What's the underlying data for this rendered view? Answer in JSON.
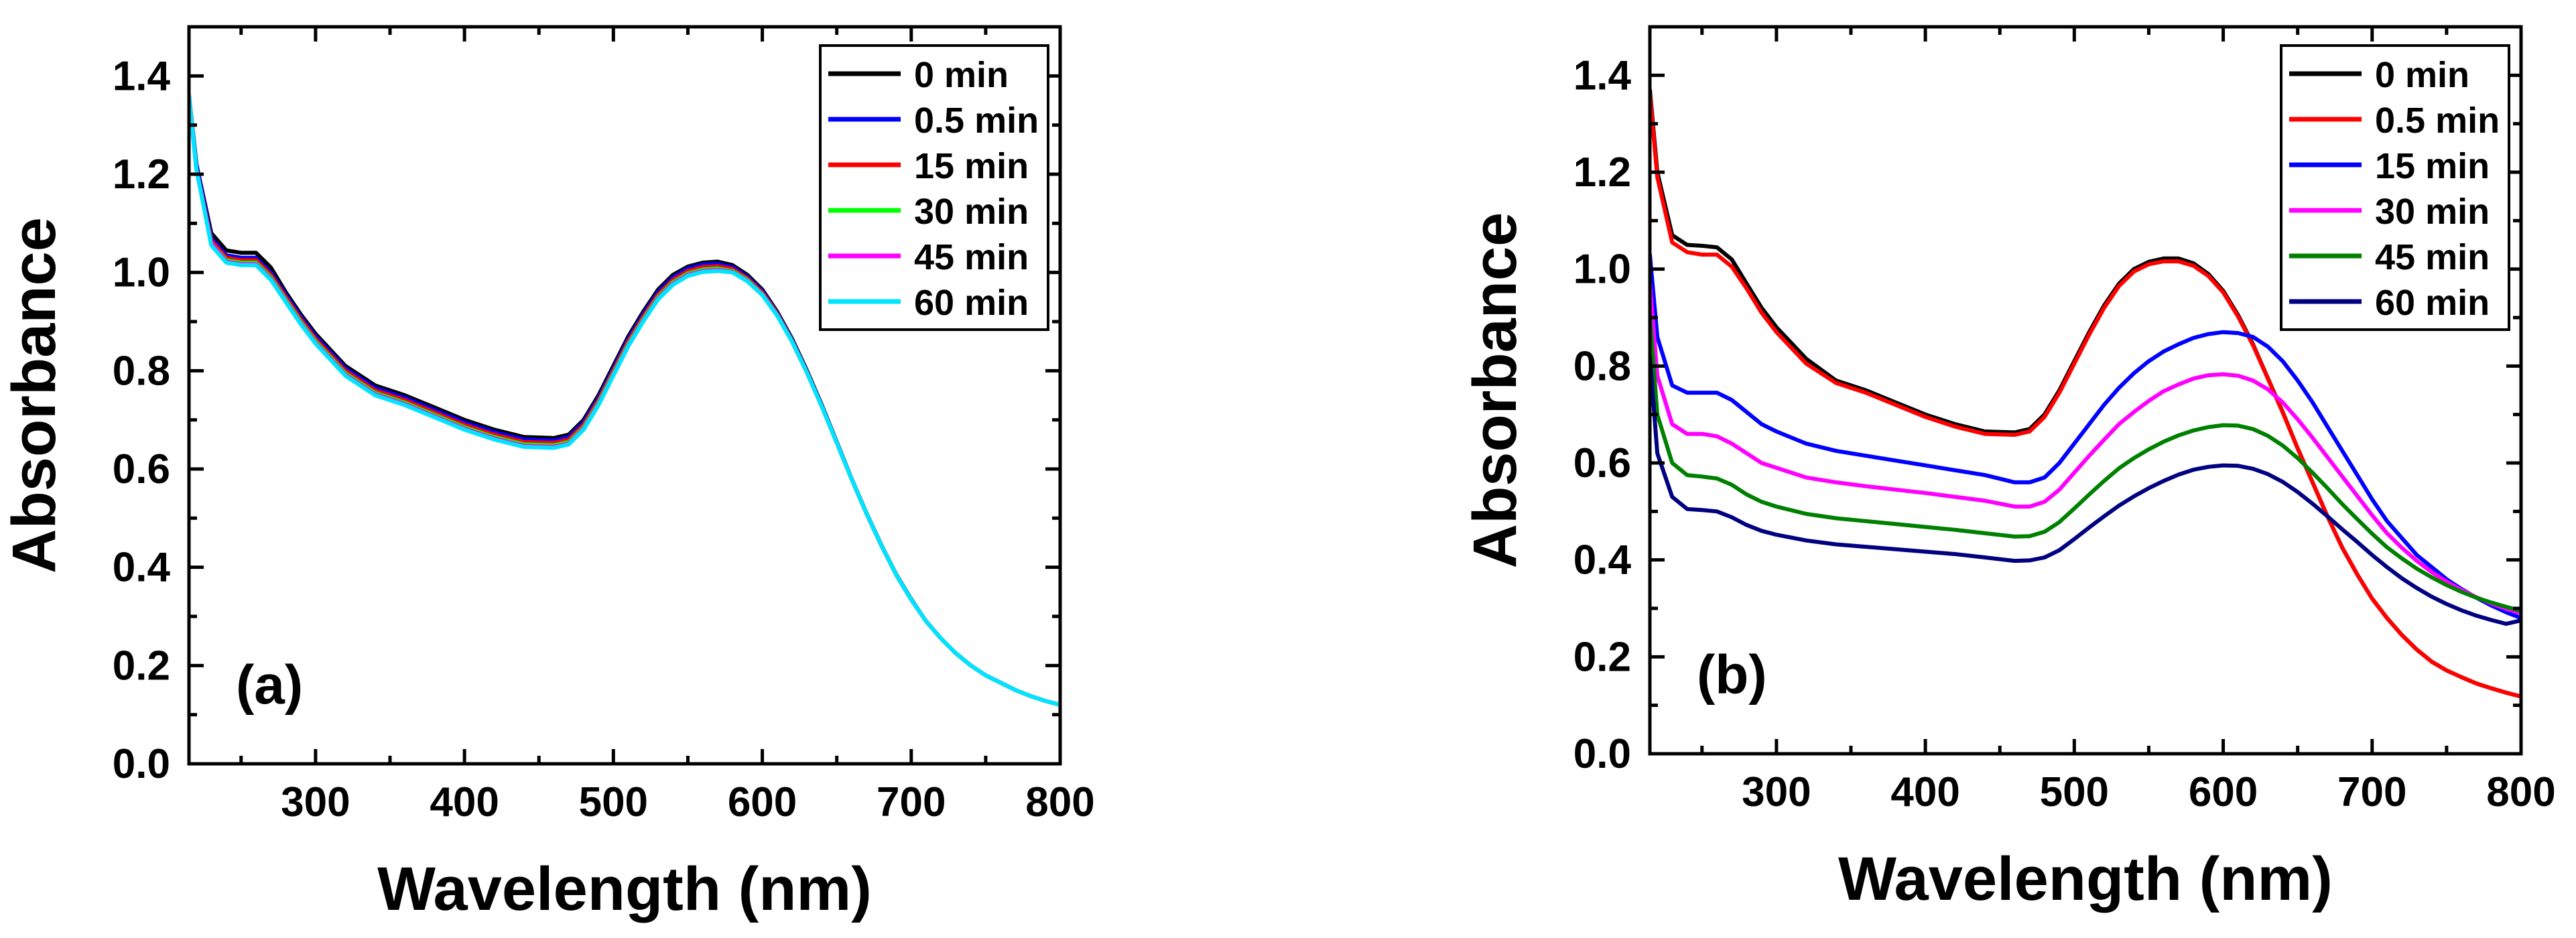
{
  "chart_data": [
    {
      "type": "line",
      "panel_label": "(a)",
      "xlabel": "Wavelength (nm)",
      "ylabel": "Absorbance",
      "xlim": [
        215,
        800
      ],
      "ylim": [
        0.0,
        1.5
      ],
      "xticks": [
        300,
        400,
        500,
        600,
        700,
        800
      ],
      "xtick_labels": [
        "300",
        "400",
        "500",
        "600",
        "700",
        "800"
      ],
      "yticks": [
        0.0,
        0.2,
        0.4,
        0.6,
        0.8,
        1.0,
        1.2,
        1.4
      ],
      "ytick_labels": [
        "0.0",
        "0.2",
        "0.4",
        "0.6",
        "0.8",
        "1.0",
        "1.2",
        "1.4"
      ],
      "legend_position": "top-right",
      "x": [
        215,
        220,
        230,
        240,
        250,
        260,
        270,
        280,
        290,
        300,
        320,
        340,
        360,
        380,
        400,
        420,
        440,
        460,
        470,
        480,
        490,
        500,
        510,
        520,
        530,
        540,
        550,
        560,
        570,
        580,
        590,
        600,
        610,
        620,
        630,
        640,
        650,
        660,
        670,
        680,
        690,
        700,
        710,
        720,
        730,
        740,
        750,
        760,
        770,
        780,
        790,
        800
      ],
      "series": [
        {
          "name": "0 min",
          "color": "#000000",
          "values": [
            1.36,
            1.22,
            1.08,
            1.045,
            1.04,
            1.04,
            1.01,
            0.96,
            0.915,
            0.875,
            0.81,
            0.77,
            0.75,
            0.725,
            0.7,
            0.68,
            0.665,
            0.663,
            0.67,
            0.7,
            0.75,
            0.81,
            0.87,
            0.92,
            0.965,
            0.995,
            1.012,
            1.02,
            1.022,
            1.015,
            0.995,
            0.965,
            0.92,
            0.865,
            0.8,
            0.73,
            0.655,
            0.58,
            0.51,
            0.445,
            0.385,
            0.335,
            0.29,
            0.255,
            0.225,
            0.2,
            0.18,
            0.165,
            0.15,
            0.138,
            0.128,
            0.12
          ]
        },
        {
          "name": "0.5 min",
          "color": "#0000ff",
          "values": [
            1.36,
            1.22,
            1.07,
            1.035,
            1.03,
            1.03,
            1.0,
            0.955,
            0.91,
            0.87,
            0.805,
            0.765,
            0.745,
            0.72,
            0.695,
            0.675,
            0.66,
            0.658,
            0.665,
            0.695,
            0.745,
            0.805,
            0.865,
            0.915,
            0.96,
            0.99,
            1.008,
            1.016,
            1.018,
            1.011,
            0.991,
            0.962,
            0.918,
            0.863,
            0.798,
            0.728,
            0.654,
            0.579,
            0.509,
            0.444,
            0.384,
            0.334,
            0.29,
            0.255,
            0.225,
            0.2,
            0.18,
            0.165,
            0.15,
            0.138,
            0.128,
            0.12
          ]
        },
        {
          "name": "15 min",
          "color": "#ff0000",
          "values": [
            1.36,
            1.21,
            1.065,
            1.03,
            1.025,
            1.025,
            0.995,
            0.95,
            0.905,
            0.865,
            0.8,
            0.76,
            0.74,
            0.715,
            0.69,
            0.67,
            0.655,
            0.653,
            0.66,
            0.69,
            0.74,
            0.8,
            0.86,
            0.91,
            0.955,
            0.985,
            1.003,
            1.011,
            1.013,
            1.007,
            0.988,
            0.959,
            0.916,
            0.861,
            0.797,
            0.727,
            0.653,
            0.579,
            0.509,
            0.444,
            0.384,
            0.334,
            0.29,
            0.255,
            0.225,
            0.2,
            0.18,
            0.165,
            0.15,
            0.138,
            0.128,
            0.12
          ]
        },
        {
          "name": "30 min",
          "color": "#00ff00",
          "values": [
            1.36,
            1.21,
            1.06,
            1.025,
            1.02,
            1.02,
            0.99,
            0.945,
            0.9,
            0.86,
            0.795,
            0.755,
            0.735,
            0.71,
            0.685,
            0.665,
            0.65,
            0.648,
            0.655,
            0.685,
            0.735,
            0.795,
            0.855,
            0.905,
            0.95,
            0.98,
            0.998,
            1.006,
            1.008,
            1.003,
            0.985,
            0.956,
            0.914,
            0.86,
            0.796,
            0.727,
            0.653,
            0.579,
            0.509,
            0.444,
            0.384,
            0.334,
            0.29,
            0.255,
            0.225,
            0.2,
            0.18,
            0.165,
            0.15,
            0.138,
            0.128,
            0.12
          ]
        },
        {
          "name": "45 min",
          "color": "#ff00ff",
          "values": [
            1.36,
            1.21,
            1.06,
            1.022,
            1.017,
            1.017,
            0.987,
            0.942,
            0.897,
            0.857,
            0.792,
            0.752,
            0.732,
            0.707,
            0.682,
            0.662,
            0.647,
            0.645,
            0.652,
            0.682,
            0.732,
            0.792,
            0.852,
            0.902,
            0.947,
            0.977,
            0.995,
            1.003,
            1.005,
            1.001,
            0.983,
            0.955,
            0.913,
            0.859,
            0.796,
            0.727,
            0.653,
            0.579,
            0.509,
            0.444,
            0.384,
            0.334,
            0.29,
            0.255,
            0.225,
            0.2,
            0.18,
            0.165,
            0.15,
            0.138,
            0.128,
            0.12
          ]
        },
        {
          "name": "60 min",
          "color": "#00e5ff",
          "values": [
            1.36,
            1.21,
            1.055,
            1.02,
            1.015,
            1.015,
            0.985,
            0.94,
            0.895,
            0.855,
            0.79,
            0.75,
            0.73,
            0.705,
            0.68,
            0.66,
            0.645,
            0.643,
            0.65,
            0.68,
            0.73,
            0.79,
            0.85,
            0.9,
            0.945,
            0.975,
            0.993,
            1.001,
            1.003,
            1.0,
            0.982,
            0.954,
            0.912,
            0.859,
            0.796,
            0.727,
            0.653,
            0.579,
            0.509,
            0.444,
            0.384,
            0.334,
            0.29,
            0.255,
            0.225,
            0.2,
            0.18,
            0.165,
            0.15,
            0.138,
            0.128,
            0.12
          ]
        }
      ]
    },
    {
      "type": "line",
      "panel_label": "(b)",
      "xlabel": "Wavelength (nm)",
      "ylabel": "Absorbance",
      "xlim": [
        215,
        800
      ],
      "ylim": [
        0.0,
        1.5
      ],
      "xticks": [
        300,
        400,
        500,
        600,
        700,
        800
      ],
      "xtick_labels": [
        "300",
        "400",
        "500",
        "600",
        "700",
        "800"
      ],
      "yticks": [
        0.0,
        0.2,
        0.4,
        0.6,
        0.8,
        1.0,
        1.2,
        1.4
      ],
      "ytick_labels": [
        "0.0",
        "0.2",
        "0.4",
        "0.6",
        "0.8",
        "1.0",
        "1.2",
        "1.4"
      ],
      "legend_position": "top-right",
      "x": [
        215,
        220,
        230,
        240,
        250,
        260,
        270,
        280,
        290,
        300,
        320,
        340,
        360,
        380,
        400,
        420,
        440,
        460,
        470,
        480,
        490,
        500,
        510,
        520,
        530,
        540,
        550,
        560,
        570,
        580,
        590,
        600,
        610,
        620,
        630,
        640,
        650,
        660,
        670,
        680,
        690,
        700,
        710,
        720,
        730,
        740,
        750,
        760,
        770,
        780,
        790,
        800
      ],
      "series": [
        {
          "name": "0 min",
          "color": "#000000",
          "values": [
            1.37,
            1.2,
            1.07,
            1.05,
            1.048,
            1.045,
            1.02,
            0.97,
            0.92,
            0.88,
            0.815,
            0.77,
            0.75,
            0.725,
            0.7,
            0.68,
            0.665,
            0.663,
            0.67,
            0.7,
            0.75,
            0.81,
            0.87,
            0.925,
            0.97,
            1.0,
            1.015,
            1.022,
            1.022,
            1.012,
            0.99,
            0.955,
            0.905,
            0.845,
            0.775,
            0.705,
            0.63,
            0.56,
            0.49,
            0.425,
            0.37,
            0.32,
            0.28,
            0.245,
            0.215,
            0.19,
            0.172,
            0.158,
            0.145,
            0.135,
            0.126,
            0.118
          ]
        },
        {
          "name": "0.5 min",
          "color": "#ff0000",
          "values": [
            1.36,
            1.19,
            1.055,
            1.035,
            1.03,
            1.03,
            1.005,
            0.96,
            0.91,
            0.87,
            0.805,
            0.765,
            0.745,
            0.72,
            0.695,
            0.675,
            0.66,
            0.658,
            0.665,
            0.695,
            0.745,
            0.805,
            0.865,
            0.92,
            0.965,
            0.995,
            1.01,
            1.016,
            1.016,
            1.007,
            0.986,
            0.952,
            0.902,
            0.843,
            0.774,
            0.704,
            0.63,
            0.56,
            0.49,
            0.425,
            0.37,
            0.32,
            0.28,
            0.245,
            0.215,
            0.19,
            0.172,
            0.158,
            0.145,
            0.135,
            0.126,
            0.118
          ]
        },
        {
          "name": "15 min",
          "color": "#0000ff",
          "values": [
            1.03,
            0.86,
            0.76,
            0.745,
            0.745,
            0.745,
            0.73,
            0.705,
            0.68,
            0.665,
            0.64,
            0.625,
            0.615,
            0.605,
            0.595,
            0.585,
            0.575,
            0.56,
            0.56,
            0.57,
            0.6,
            0.64,
            0.68,
            0.72,
            0.755,
            0.785,
            0.81,
            0.83,
            0.845,
            0.858,
            0.866,
            0.87,
            0.868,
            0.86,
            0.84,
            0.81,
            0.77,
            0.725,
            0.675,
            0.625,
            0.575,
            0.525,
            0.48,
            0.445,
            0.41,
            0.385,
            0.36,
            0.34,
            0.322,
            0.306,
            0.292,
            0.28
          ]
        },
        {
          "name": "30 min",
          "color": "#ff00ff",
          "values": [
            0.97,
            0.78,
            0.68,
            0.66,
            0.66,
            0.655,
            0.64,
            0.62,
            0.6,
            0.59,
            0.57,
            0.56,
            0.552,
            0.545,
            0.538,
            0.53,
            0.522,
            0.51,
            0.51,
            0.52,
            0.545,
            0.58,
            0.615,
            0.648,
            0.68,
            0.705,
            0.728,
            0.748,
            0.762,
            0.774,
            0.781,
            0.783,
            0.78,
            0.77,
            0.752,
            0.725,
            0.69,
            0.652,
            0.612,
            0.572,
            0.532,
            0.492,
            0.455,
            0.425,
            0.398,
            0.375,
            0.355,
            0.338,
            0.323,
            0.31,
            0.299,
            0.29
          ]
        },
        {
          "name": "45 min",
          "color": "#008000",
          "values": [
            0.9,
            0.7,
            0.6,
            0.575,
            0.572,
            0.568,
            0.555,
            0.535,
            0.52,
            0.51,
            0.495,
            0.486,
            0.48,
            0.474,
            0.468,
            0.462,
            0.455,
            0.448,
            0.449,
            0.458,
            0.478,
            0.506,
            0.535,
            0.563,
            0.589,
            0.61,
            0.628,
            0.644,
            0.657,
            0.667,
            0.674,
            0.678,
            0.677,
            0.67,
            0.656,
            0.636,
            0.61,
            0.58,
            0.548,
            0.515,
            0.484,
            0.454,
            0.426,
            0.403,
            0.382,
            0.364,
            0.348,
            0.334,
            0.322,
            0.312,
            0.303,
            0.295
          ]
        },
        {
          "name": "60 min",
          "color": "#000080",
          "values": [
            0.82,
            0.62,
            0.53,
            0.505,
            0.503,
            0.5,
            0.488,
            0.472,
            0.46,
            0.452,
            0.44,
            0.432,
            0.427,
            0.422,
            0.417,
            0.412,
            0.405,
            0.398,
            0.399,
            0.405,
            0.42,
            0.443,
            0.467,
            0.49,
            0.512,
            0.531,
            0.548,
            0.563,
            0.576,
            0.586,
            0.592,
            0.595,
            0.594,
            0.588,
            0.577,
            0.561,
            0.54,
            0.516,
            0.49,
            0.463,
            0.437,
            0.41,
            0.385,
            0.362,
            0.342,
            0.324,
            0.309,
            0.296,
            0.285,
            0.276,
            0.268,
            0.275
          ]
        }
      ]
    }
  ]
}
